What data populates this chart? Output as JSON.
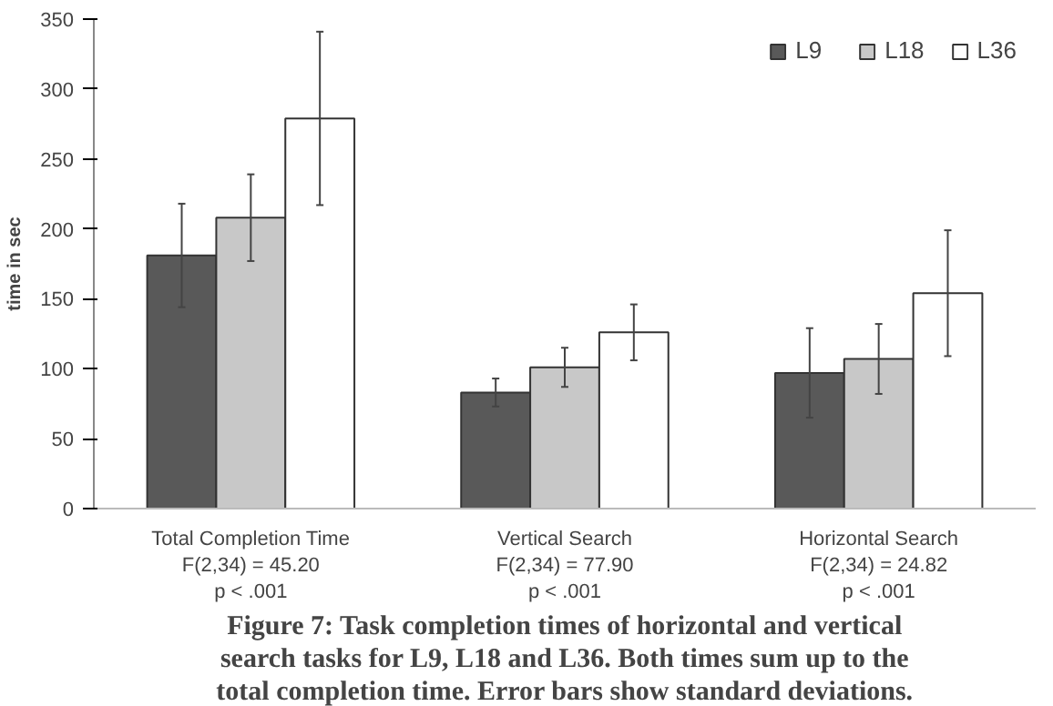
{
  "chart_data": {
    "type": "bar",
    "ylabel": "time in sec",
    "categories": [
      "Total Completion Time\nF(2,34) = 45.20\np < .001",
      "Vertical Search\nF(2,34) = 77.90\np < .001",
      "Horizontal Search\nF(2,34) = 24.82\np < .001"
    ],
    "series": [
      {
        "name": "L9",
        "color": "#595959",
        "values": [
          181,
          83,
          97
        ],
        "errors": [
          37,
          10,
          32
        ]
      },
      {
        "name": "L18",
        "color": "#c8c8c8",
        "values": [
          208,
          101,
          107
        ],
        "errors": [
          31,
          14,
          25
        ]
      },
      {
        "name": "L36",
        "color": "#ffffff",
        "values": [
          279,
          126,
          154
        ],
        "errors": [
          62,
          20,
          45
        ]
      }
    ],
    "ylim": [
      0,
      350
    ],
    "yticks": [
      0,
      50,
      100,
      150,
      200,
      250,
      300,
      350
    ],
    "legend": "top right",
    "grid": false,
    "annotations": [
      "Figure 7: Task completion times of horizontal and vertical\nsearch tasks for L9, L18 and L36. Both times sum up to the\ntotal completion time. Error bars show standard deviations."
    ]
  }
}
